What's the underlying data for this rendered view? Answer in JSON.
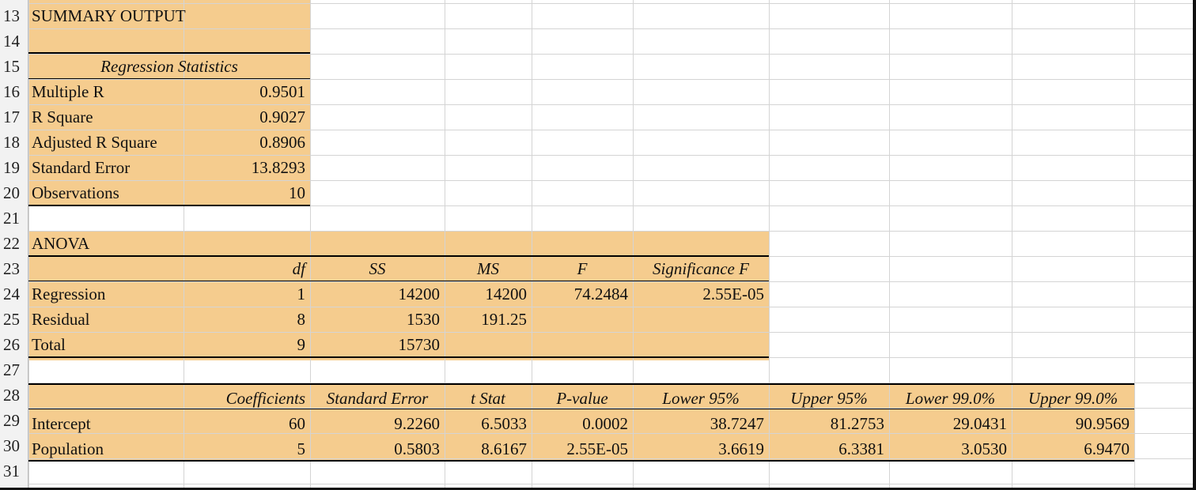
{
  "rows": [
    "13",
    "14",
    "15",
    "16",
    "17",
    "18",
    "19",
    "20",
    "21",
    "22",
    "23",
    "24",
    "25",
    "26",
    "27",
    "28",
    "29",
    "30",
    "31"
  ],
  "summary_title": "SUMMARY OUTPUT",
  "regression_statistics": {
    "header": "Regression Statistics",
    "items": [
      {
        "label": "Multiple R",
        "value": "0.9501"
      },
      {
        "label": "R Square",
        "value": "0.9027"
      },
      {
        "label": "Adjusted R Square",
        "value": "0.8906"
      },
      {
        "label": "Standard Error",
        "value": "13.8293"
      },
      {
        "label": "Observations",
        "value": "10"
      }
    ]
  },
  "anova": {
    "title": "ANOVA",
    "headers": [
      "df",
      "SS",
      "MS",
      "F",
      "Significance F"
    ],
    "rows": [
      {
        "label": "Regression",
        "df": "1",
        "ss": "14200",
        "ms": "14200",
        "f": "74.2484",
        "sig": "2.55E-05"
      },
      {
        "label": "Residual",
        "df": "8",
        "ss": "1530",
        "ms": "191.25",
        "f": "",
        "sig": ""
      },
      {
        "label": "Total",
        "df": "9",
        "ss": "15730",
        "ms": "",
        "f": "",
        "sig": ""
      }
    ]
  },
  "coefficients": {
    "headers": [
      "Coefficients",
      "Standard Error",
      "t Stat",
      "P-value",
      "Lower 95%",
      "Upper 95%",
      "Lower 99.0%",
      "Upper 99.0%"
    ],
    "rows": [
      {
        "label": "Intercept",
        "values": [
          "60",
          "9.2260",
          "6.5033",
          "0.0002",
          "38.7247",
          "81.2753",
          "29.0431",
          "90.9569"
        ]
      },
      {
        "label": "Population",
        "values": [
          "5",
          "0.5803",
          "8.6167",
          "2.55E-05",
          "3.6619",
          "6.3381",
          "3.0530",
          "6.9470"
        ]
      }
    ]
  },
  "colors": {
    "fill": "#f5cc8e",
    "grid": "#d4d4d4"
  }
}
